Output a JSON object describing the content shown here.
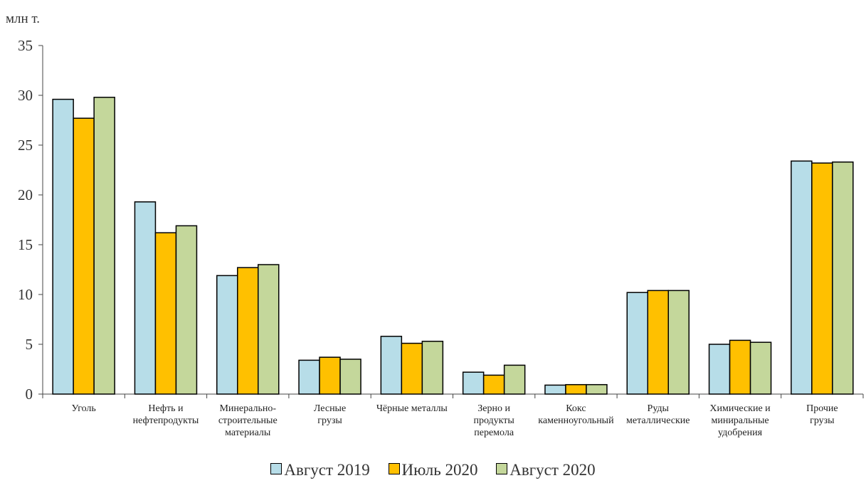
{
  "chart_data": {
    "type": "bar",
    "unit_label": "млн т.",
    "categories": [
      [
        "Уголь"
      ],
      [
        "Нефть и",
        "нефтепродукты"
      ],
      [
        "Минерально-",
        "строительные",
        "материалы"
      ],
      [
        "Лесные",
        "грузы"
      ],
      [
        "Чёрные металлы"
      ],
      [
        "Зерно и",
        "продукты",
        "перемола"
      ],
      [
        "Кокс",
        "каменноугольный"
      ],
      [
        "Руды",
        "металлические"
      ],
      [
        "Химические и",
        "миниральные",
        "удобрения"
      ],
      [
        "Прочие",
        "грузы"
      ]
    ],
    "series": [
      {
        "name": "Август 2019",
        "color": "#b7dde8",
        "values": [
          29.6,
          19.3,
          11.9,
          3.4,
          5.8,
          2.2,
          0.9,
          10.2,
          5.0,
          23.4
        ]
      },
      {
        "name": "Июль 2020",
        "color": "#ffc000",
        "values": [
          27.7,
          16.2,
          12.7,
          3.7,
          5.1,
          1.9,
          0.95,
          10.4,
          5.4,
          23.2
        ]
      },
      {
        "name": "Август 2020",
        "color": "#c4d79b",
        "values": [
          29.8,
          16.9,
          13.0,
          3.5,
          5.3,
          2.9,
          0.95,
          10.4,
          5.2,
          23.3
        ]
      }
    ],
    "y_ticks": [
      "0",
      "5",
      "10",
      "15",
      "20",
      "25",
      "30",
      "35"
    ],
    "ylim": [
      0,
      35
    ],
    "grid": false,
    "legend_position": "bottom"
  }
}
